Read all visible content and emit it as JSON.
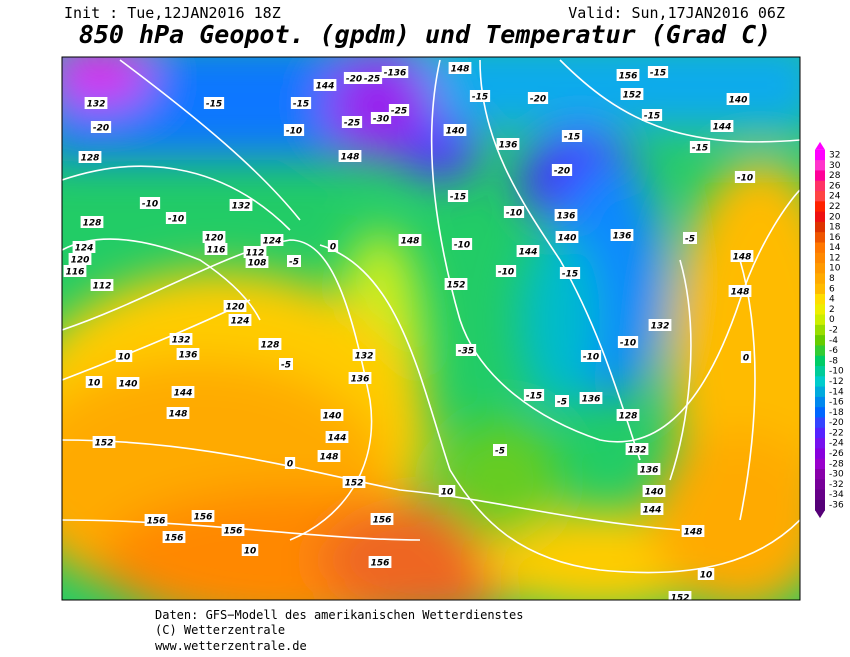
{
  "header": {
    "init": "Init : Tue,12JAN2016 18Z",
    "valid": "Valid: Sun,17JAN2016 06Z",
    "title": "850 hPa Geopot. (gpdm) und Temperatur (Grad C)"
  },
  "footer": {
    "source": "Daten: GFS−Modell des amerikanischen Wetterdienstes",
    "copyright": "(C) Wetterzentrale",
    "url": "www.wetterzentrale.de"
  },
  "colorbar": {
    "ticks": [
      32,
      30,
      28,
      26,
      24,
      22,
      20,
      18,
      16,
      14,
      12,
      10,
      8,
      6,
      4,
      2,
      0,
      -2,
      -4,
      -6,
      -8,
      -10,
      -12,
      -14,
      -16,
      -18,
      -20,
      -22,
      -24,
      -26,
      -28,
      -30,
      -32,
      -34,
      -36
    ],
    "colors": [
      "#ff00ff",
      "#ff33cc",
      "#ff0099",
      "#ff3366",
      "#ff4444",
      "#ff2200",
      "#ee1111",
      "#dd3300",
      "#ee5500",
      "#ff7700",
      "#ff8800",
      "#ff9900",
      "#ffaa00",
      "#ffbb00",
      "#ffdd00",
      "#eeee00",
      "#ccee00",
      "#99dd00",
      "#66cc00",
      "#33cc33",
      "#00cc66",
      "#00cc99",
      "#00cccc",
      "#00aadd",
      "#0088ee",
      "#0066ff",
      "#3344ff",
      "#5522ff",
      "#7711ee",
      "#8800dd",
      "#9900cc",
      "#8800aa",
      "#770099",
      "#660088",
      "#550077"
    ]
  },
  "map": {
    "isoline_labels": [
      132,
      -20,
      128,
      -15,
      -15,
      -10,
      144,
      -20,
      -25,
      -136,
      148,
      -25,
      -30,
      -25,
      140,
      -15,
      -20,
      156,
      -15,
      152,
      140,
      144,
      -15,
      -15,
      136,
      -15,
      -20,
      -10,
      148,
      -15,
      -10,
      136,
      140,
      136,
      144,
      -5,
      148,
      -10,
      152,
      -10,
      -15,
      148,
      148,
      0,
      132,
      -10,
      -10,
      -35,
      132,
      136,
      128,
      120,
      124,
      132,
      136,
      140,
      144,
      148,
      152,
      140,
      144,
      148,
      152,
      0,
      -5,
      10,
      136,
      140,
      144,
      148,
      156,
      156,
      156,
      156,
      156,
      10,
      156,
      10,
      152,
      124,
      112,
      116,
      120,
      108,
      112,
      116,
      120,
      124,
      128,
      -10,
      -10,
      132,
      -5,
      0,
      -5,
      10,
      10,
      136,
      128,
      -15,
      -5,
      132
    ]
  }
}
